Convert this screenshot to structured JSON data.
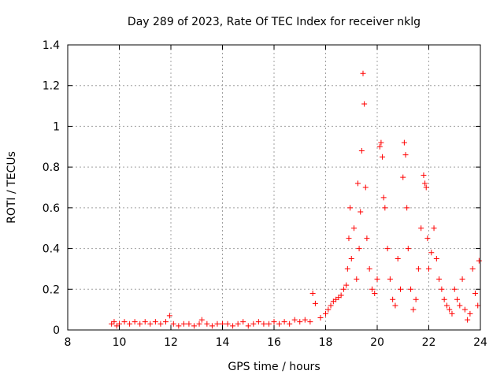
{
  "chart_data": {
    "type": "scatter",
    "title": "Day 289 of 2023, Rate Of TEC Index for receiver nklg",
    "xlabel": "GPS time / hours",
    "ylabel": "ROTI / TECUs",
    "xlim": [
      8,
      24
    ],
    "ylim": [
      0,
      1.4
    ],
    "xticks": [
      "8",
      "10",
      "12",
      "14",
      "16",
      "18",
      "20",
      "22",
      "24"
    ],
    "yticks": [
      "0",
      "0.2",
      "0.4",
      "0.6",
      "0.8",
      "1",
      "1.2",
      "1.4"
    ],
    "grid": true,
    "marker": "+",
    "color": "#ff0000",
    "series": [
      {
        "name": "",
        "x": [
          9.7,
          9.8,
          9.9,
          10.0,
          10.2,
          10.4,
          10.6,
          10.8,
          11.0,
          11.2,
          11.4,
          11.6,
          11.8,
          11.95,
          12.1,
          12.3,
          12.5,
          12.7,
          12.9,
          13.1,
          13.2,
          13.4,
          13.6,
          13.8,
          14.0,
          14.2,
          14.4,
          14.6,
          14.8,
          15.0,
          15.2,
          15.4,
          15.6,
          15.8,
          16.0,
          16.2,
          16.4,
          16.6,
          16.8,
          17.0,
          17.2,
          17.4,
          17.5,
          17.6,
          17.8,
          18.0,
          18.1,
          18.2,
          18.3,
          18.4,
          18.5,
          18.6,
          18.7,
          18.8,
          18.85,
          18.9,
          18.95,
          19.0,
          19.1,
          19.2,
          19.25,
          19.3,
          19.35,
          19.4,
          19.45,
          19.5,
          19.55,
          19.6,
          19.7,
          19.8,
          19.9,
          20.0,
          20.1,
          20.15,
          20.2,
          20.25,
          20.3,
          20.4,
          20.5,
          20.6,
          20.7,
          20.8,
          20.9,
          21.0,
          21.05,
          21.1,
          21.15,
          21.2,
          21.3,
          21.4,
          21.5,
          21.6,
          21.7,
          21.8,
          21.85,
          21.9,
          21.95,
          22.0,
          22.1,
          22.2,
          22.3,
          22.4,
          22.5,
          22.6,
          22.7,
          22.8,
          22.9,
          23.0,
          23.1,
          23.2,
          23.3,
          23.4,
          23.5,
          23.6,
          23.7,
          23.8,
          23.9,
          23.95
        ],
        "y": [
          0.03,
          0.04,
          0.02,
          0.03,
          0.04,
          0.03,
          0.04,
          0.03,
          0.04,
          0.03,
          0.04,
          0.03,
          0.04,
          0.07,
          0.03,
          0.02,
          0.03,
          0.03,
          0.02,
          0.03,
          0.05,
          0.03,
          0.02,
          0.03,
          0.03,
          0.03,
          0.02,
          0.03,
          0.04,
          0.02,
          0.03,
          0.04,
          0.03,
          0.03,
          0.04,
          0.03,
          0.04,
          0.03,
          0.05,
          0.04,
          0.05,
          0.04,
          0.18,
          0.13,
          0.06,
          0.08,
          0.1,
          0.12,
          0.14,
          0.15,
          0.16,
          0.17,
          0.2,
          0.22,
          0.3,
          0.45,
          0.6,
          0.35,
          0.5,
          0.25,
          0.72,
          0.4,
          0.58,
          0.88,
          1.26,
          1.11,
          0.7,
          0.45,
          0.3,
          0.2,
          0.18,
          0.25,
          0.9,
          0.92,
          0.85,
          0.65,
          0.6,
          0.4,
          0.25,
          0.15,
          0.12,
          0.35,
          0.2,
          0.75,
          0.92,
          0.86,
          0.6,
          0.4,
          0.2,
          0.1,
          0.15,
          0.3,
          0.5,
          0.76,
          0.72,
          0.7,
          0.45,
          0.3,
          0.38,
          0.5,
          0.35,
          0.25,
          0.2,
          0.15,
          0.12,
          0.1,
          0.08,
          0.2,
          0.15,
          0.12,
          0.25,
          0.1,
          0.05,
          0.08,
          0.3,
          0.18,
          0.12,
          0.34
        ]
      }
    ]
  }
}
